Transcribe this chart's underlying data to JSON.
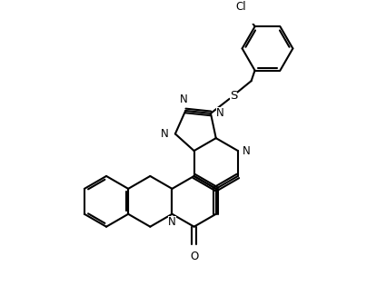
{
  "background": "#ffffff",
  "line_color": "#000000",
  "line_width": 1.5,
  "font_size": 8.5,
  "figsize": [
    4.04,
    3.15
  ],
  "dpi": 100,
  "xlim": [
    0,
    10
  ],
  "ylim": [
    0,
    8
  ]
}
